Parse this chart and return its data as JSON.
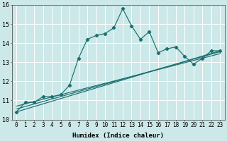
{
  "xlabel": "Humidex (Indice chaleur)",
  "bg_color": "#cce8e8",
  "grid_color": "#ffffff",
  "line_color": "#1a7070",
  "xlim": [
    -0.5,
    23.5
  ],
  "ylim": [
    10,
    16
  ],
  "xticks": [
    0,
    1,
    2,
    3,
    4,
    5,
    6,
    7,
    8,
    9,
    10,
    11,
    12,
    13,
    14,
    15,
    16,
    17,
    18,
    19,
    20,
    21,
    22,
    23
  ],
  "yticks": [
    10,
    11,
    12,
    13,
    14,
    15,
    16
  ],
  "series1_x": [
    0,
    1,
    2,
    3,
    4,
    5,
    6,
    7,
    8,
    9,
    10,
    11,
    12,
    13,
    14,
    15,
    16,
    17,
    18,
    19,
    20,
    21,
    22,
    23
  ],
  "series1_y": [
    10.4,
    10.9,
    10.9,
    11.2,
    11.2,
    11.3,
    11.8,
    13.2,
    14.2,
    14.4,
    14.5,
    14.8,
    15.8,
    14.9,
    14.2,
    14.6,
    13.5,
    13.7,
    13.8,
    13.3,
    12.9,
    13.2,
    13.6,
    13.6
  ],
  "line2_x": [
    0,
    23
  ],
  "line2_y": [
    10.4,
    13.6
  ],
  "line3_x": [
    0,
    23
  ],
  "line3_y": [
    10.55,
    13.55
  ],
  "line4_x": [
    0,
    23
  ],
  "line4_y": [
    10.7,
    13.45
  ],
  "xlabel_fontsize": 6.5,
  "tick_fontsize": 5.5,
  "linewidth": 0.85,
  "markersize": 2.2
}
